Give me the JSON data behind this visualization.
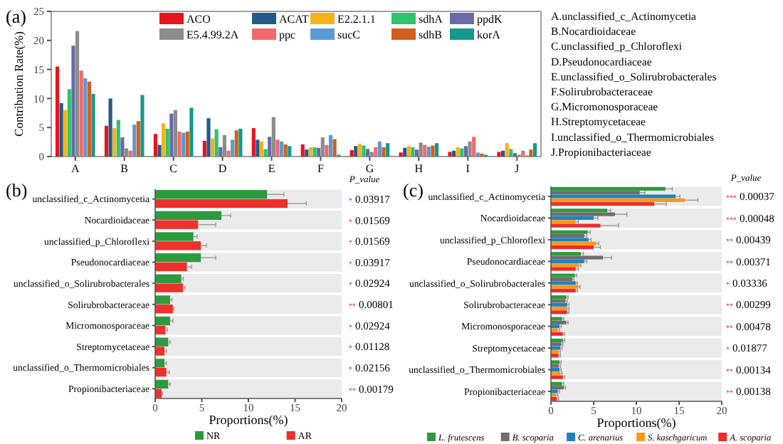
{
  "chart_data": [
    {
      "type": "bar",
      "title": "(a)",
      "ylabel": "Contribution Rate(%)",
      "categories": [
        "A",
        "B",
        "C",
        "D",
        "E",
        "F",
        "G",
        "H",
        "I",
        "J"
      ],
      "ylim": [
        0,
        25
      ],
      "yticks": [
        0,
        5,
        10,
        15,
        20,
        25
      ],
      "legend": "top right",
      "series": [
        {
          "name": "ACO",
          "color": "#e8141e",
          "values": [
            15.5,
            5.3,
            3.9,
            2.7,
            4.9,
            2.1,
            1.1,
            0.7,
            0.8,
            0.8
          ]
        },
        {
          "name": "ACAT",
          "color": "#245a8a",
          "values": [
            9.2,
            10,
            2,
            6.6,
            2.9,
            1.2,
            1.8,
            1.5,
            1.0,
            1.0
          ]
        },
        {
          "name": "E2.2.1.1",
          "color": "#f5b21c",
          "values": [
            8,
            4.9,
            5.7,
            3.1,
            2.6,
            1.6,
            2.2,
            1.8,
            1.6,
            2.3
          ]
        },
        {
          "name": "sdhA",
          "color": "#2ec46c",
          "values": [
            11.6,
            6.3,
            4.8,
            4.7,
            1.3,
            1.6,
            1.9,
            1.6,
            1.4,
            1.3
          ]
        },
        {
          "name": "ppdK",
          "color": "#6a6aa8",
          "values": [
            19.1,
            3.3,
            7.4,
            1.6,
            3.4,
            1.5,
            1.3,
            1.2,
            1.8,
            0.6
          ]
        },
        {
          "name": "E5.4.99.2A",
          "color": "#8c8c8c",
          "values": [
            21.6,
            1.4,
            8,
            3.7,
            6.8,
            3.3,
            0.8,
            2.4,
            2.6,
            0.3
          ]
        },
        {
          "name": "ppc",
          "color": "#f26b6b",
          "values": [
            14.8,
            1,
            4.3,
            1,
            2.9,
            2,
            1.6,
            2,
            3.4,
            1
          ]
        },
        {
          "name": "sucC",
          "color": "#5b9bd5",
          "values": [
            13.5,
            5.5,
            4.1,
            2.9,
            2.6,
            3.7,
            2.6,
            1.7,
            0.7,
            0.2
          ]
        },
        {
          "name": "sdhB",
          "color": "#d2601c",
          "values": [
            12.9,
            6.1,
            4.3,
            4.5,
            2.1,
            3,
            1.6,
            1.9,
            0.5,
            1.2
          ]
        },
        {
          "name": "korA",
          "color": "#14998c",
          "values": [
            10.8,
            10.6,
            8.4,
            4.8,
            1.8,
            0.3,
            2.3,
            2.3,
            0.3,
            2.3
          ]
        }
      ],
      "annotations": [
        "A.unclassified_c_Actinomycetia",
        "B.Nocardioidaceae",
        "C.unclassified_p_Chloroflexi",
        "D.Pseudonocardiaceae",
        "E.unclassified_o_Solirubrobacterales",
        "F.Solirubrobacteraceae",
        "G.Micromonosporaceae",
        "H.Streptomycetaceae",
        "I.unclassified_o_Thermomicrobiales",
        "J.Propionibacteriaceae"
      ]
    },
    {
      "type": "bar",
      "orientation": "horizontal",
      "title": "(b)",
      "xlabel": "Proportions(%)",
      "xlim": [
        0,
        20
      ],
      "xticks": [
        0,
        5,
        10,
        15,
        20
      ],
      "legend": "bottom",
      "categories": [
        "unclassified_c_Actinomycetia",
        "Nocardioidaceae",
        "unclassified_p_Chloroflexi",
        "Pseudonocardiaceae",
        "unclassified_o_Solirubrobacterales",
        "Solirubrobacteraceae",
        "Micromonosporaceae",
        "Streptomycetaceae",
        "unclassified_o_Thermomicrobiales",
        "Propionibacteriaceae"
      ],
      "series": [
        {
          "name": "NR",
          "color": "#2e9a3e",
          "values": [
            12.0,
            7.1,
            4.1,
            4.9,
            2.8,
            1.6,
            1.6,
            1.4,
            1.0,
            1.4
          ],
          "errors": [
            [
              12.0,
              13.8
            ],
            [
              7.1,
              8.1
            ],
            [
              4.1,
              4.5
            ],
            [
              4.9,
              6.5
            ],
            [
              2.8,
              3.0
            ],
            [
              1.6,
              1.8
            ],
            [
              1.6,
              1.9
            ],
            [
              1.4,
              1.6
            ],
            [
              1.0,
              1.2
            ],
            [
              1.4,
              1.6
            ]
          ]
        },
        {
          "name": "AR",
          "color": "#f0302c",
          "values": [
            14.2,
            4.6,
            4.9,
            3.4,
            3.0,
            1.9,
            1.1,
            1.0,
            1.2,
            0.7
          ],
          "errors": [
            [
              14.2,
              16.2
            ],
            [
              4.6,
              6.5
            ],
            [
              4.9,
              5.5
            ],
            [
              3.4,
              3.9
            ],
            [
              3.0,
              3.2
            ],
            [
              1.9,
              2.0
            ],
            [
              1.1,
              1.3
            ],
            [
              1.0,
              1.2
            ],
            [
              1.2,
              1.5
            ],
            [
              0.7,
              0.8
            ]
          ]
        }
      ],
      "annotations": [
        "P_value",
        "* 0.03917",
        "* 0.01569",
        "* 0.01569",
        "* 0.03917",
        "* 0.02924",
        "** 0.00801",
        "* 0.02924",
        "* 0.01128",
        "* 0.02156",
        "** 0.00179"
      ]
    },
    {
      "type": "bar",
      "orientation": "horizontal",
      "title": "(c)",
      "xlabel": "Proportions(%)",
      "xlim": [
        0,
        20
      ],
      "xticks": [
        0,
        5,
        10,
        15,
        20
      ],
      "legend": "bottom",
      "categories": [
        "unclassified_c_Actinomycetia",
        "Nocardioidaceae",
        "unclassified_p_Chloroflexi",
        "Pseudonocardiaceae",
        "unclassified_o_Solirubrobacterales",
        "Solirubrobacteraceae",
        "Micromonosporaceae",
        "Streptomycetaceae",
        "unclassified_o_Thermomicrobiales",
        "Propionibacteriaceae"
      ],
      "series": [
        {
          "name": "L. frutescens",
          "color": "#2e9a3e",
          "values": [
            13.4,
            6.6,
            4.3,
            3.5,
            2.8,
            1.8,
            1.3,
            1.4,
            1.0,
            1.3
          ],
          "errors": [
            [
              13.4,
              14.2
            ],
            [
              6.6,
              7.0
            ],
            [
              4.3,
              4.6
            ],
            [
              3.5,
              3.8
            ],
            [
              2.8,
              3.0
            ],
            [
              1.8,
              2.0
            ],
            [
              1.3,
              1.5
            ],
            [
              1.4,
              1.6
            ],
            [
              1.0,
              1.2
            ],
            [
              1.3,
              1.5
            ]
          ]
        },
        {
          "name": "B. scoparia",
          "color": "#6e6e6e",
          "values": [
            10.4,
            7.5,
            3.9,
            6.1,
            2.5,
            1.7,
            1.8,
            1.2,
            0.9,
            1.5
          ],
          "errors": [
            [
              10.4,
              11.0
            ],
            [
              7.5,
              8.9
            ],
            [
              3.9,
              4.2
            ],
            [
              6.1,
              7.1
            ],
            [
              2.5,
              2.7
            ],
            [
              1.7,
              1.9
            ],
            [
              1.8,
              2.0
            ],
            [
              1.2,
              1.4
            ],
            [
              0.9,
              1.1
            ],
            [
              1.5,
              1.7
            ]
          ]
        },
        {
          "name": "C. arenarius",
          "color": "#1f82c0",
          "values": [
            14.6,
            5.0,
            4.4,
            3.9,
            2.9,
            1.9,
            1.0,
            1.1,
            1.0,
            0.8
          ],
          "errors": [
            [
              14.6,
              15.1
            ],
            [
              5.0,
              5.5
            ],
            [
              4.4,
              4.7
            ],
            [
              3.9,
              4.2
            ],
            [
              2.9,
              3.1
            ],
            [
              1.9,
              2.1
            ],
            [
              1.0,
              1.2
            ],
            [
              1.1,
              1.3
            ],
            [
              1.0,
              1.2
            ],
            [
              0.8,
              1.0
            ]
          ]
        },
        {
          "name": "S. kaschgaricum",
          "color": "#f59a1c",
          "values": [
            15.7,
            2.9,
            5.3,
            3.3,
            3.2,
            1.9,
            0.8,
            0.9,
            1.1,
            0.6
          ],
          "errors": [
            [
              15.7,
              17.2
            ],
            [
              2.9,
              3.2
            ],
            [
              5.3,
              5.6
            ],
            [
              3.3,
              3.5
            ],
            [
              3.2,
              3.4
            ],
            [
              1.9,
              2.1
            ],
            [
              0.8,
              1.0
            ],
            [
              0.9,
              1.1
            ],
            [
              1.1,
              1.3
            ],
            [
              0.6,
              0.8
            ]
          ]
        },
        {
          "name": "A. scoparia",
          "color": "#ee2c2c",
          "values": [
            12.1,
            5.8,
            5.0,
            2.9,
            2.9,
            1.9,
            1.4,
            0.9,
            1.4,
            0.7
          ],
          "errors": [
            [
              12.1,
              13.5
            ],
            [
              5.8,
              7.9
            ],
            [
              5.0,
              5.8
            ],
            [
              2.9,
              3.2
            ],
            [
              2.9,
              3.1
            ],
            [
              1.9,
              2.1
            ],
            [
              1.4,
              1.6
            ],
            [
              0.9,
              1.1
            ],
            [
              1.4,
              1.6
            ],
            [
              0.7,
              0.9
            ]
          ]
        }
      ],
      "annotations": [
        "P_value",
        "*** 0.00037",
        "*** 0.00048",
        "** 0.00439",
        "** 0.00371",
        "* 0.03336",
        "** 0.00299",
        "** 0.00478",
        "* 0.01877",
        "** 0.00134",
        "** 0.00138"
      ]
    }
  ]
}
